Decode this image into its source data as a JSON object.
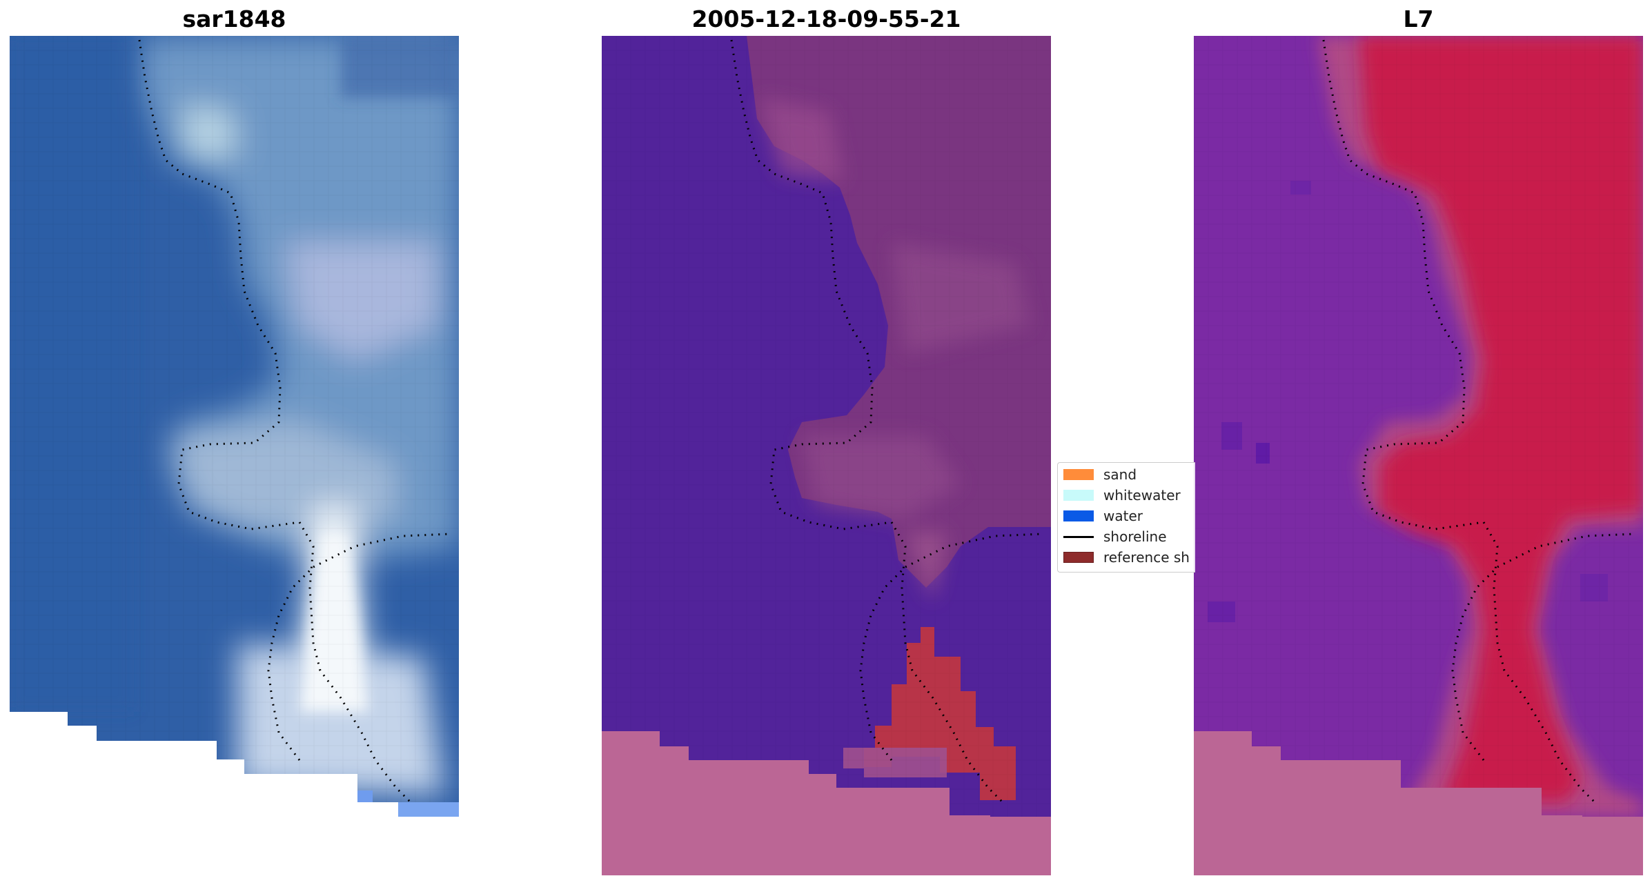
{
  "panels": [
    {
      "title": "sar1848",
      "kind": "rgb"
    },
    {
      "title": "2005-12-18-09-55-21",
      "kind": "classified"
    },
    {
      "title": "L7",
      "kind": "index"
    }
  ],
  "legend": {
    "items": [
      {
        "label": "sand",
        "type": "patch",
        "color": "#ff8c3a"
      },
      {
        "label": "whitewater",
        "type": "patch",
        "color": "#c8fafa"
      },
      {
        "label": "water",
        "type": "patch",
        "color": "#0a5ae6"
      },
      {
        "label": "shoreline",
        "type": "line",
        "color": "#000000"
      },
      {
        "label": "reference sh",
        "type": "patch",
        "color": "#8e2b2b"
      }
    ]
  },
  "colors": {
    "rgb_water": "#2e5fa8",
    "rgb_foam": "#dce9f4",
    "classified_water": "#52239a",
    "classified_land": "#7a3580",
    "classified_ref": "#b83448",
    "nodata": "#bb6695",
    "index_water": "#7b2aa4",
    "index_land": "#c81b4b",
    "shoreline_dots": "#000000"
  }
}
